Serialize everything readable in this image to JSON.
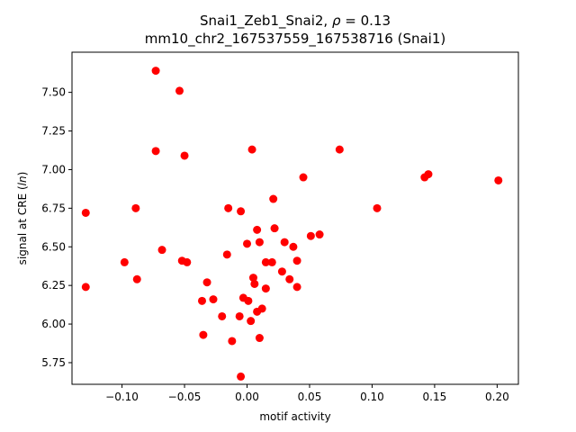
{
  "chart_data": {
    "type": "scatter",
    "title_line1_prefix": "Snai1_Zeb1_Snai2, ",
    "title_rho_symbol": "ρ",
    "title_rho_value": " = 0.13",
    "title_line2": "mm10_chr2_167537559_167538716 (Snai1)",
    "xlabel": "motif activity",
    "ylabel_prefix": "signal at CRE (",
    "ylabel_italic": "ln",
    "ylabel_suffix": ")",
    "xlim": [
      -0.14,
      0.217
    ],
    "ylim": [
      5.61,
      7.76
    ],
    "xticks": [
      -0.1,
      -0.05,
      0.0,
      0.05,
      0.1,
      0.15,
      0.2
    ],
    "xtick_labels": [
      "−0.10",
      "−0.05",
      "0.00",
      "0.05",
      "0.10",
      "0.15",
      "0.20"
    ],
    "yticks": [
      5.75,
      6.0,
      6.25,
      6.5,
      6.75,
      7.0,
      7.25,
      7.5
    ],
    "ytick_labels": [
      "5.75",
      "6.00",
      "6.25",
      "6.50",
      "6.75",
      "7.00",
      "7.25",
      "7.50"
    ],
    "marker_color": "#ff0000",
    "grid": false,
    "legend": "none",
    "points": [
      {
        "x": -0.073,
        "y": 7.64
      },
      {
        "x": -0.054,
        "y": 7.51
      },
      {
        "x": -0.073,
        "y": 7.12
      },
      {
        "x": -0.05,
        "y": 7.09
      },
      {
        "x": 0.004,
        "y": 7.13
      },
      {
        "x": 0.074,
        "y": 7.13
      },
      {
        "x": 0.045,
        "y": 6.95
      },
      {
        "x": 0.142,
        "y": 6.95
      },
      {
        "x": 0.145,
        "y": 6.97
      },
      {
        "x": 0.201,
        "y": 6.93
      },
      {
        "x": 0.104,
        "y": 6.75
      },
      {
        "x": -0.129,
        "y": 6.72
      },
      {
        "x": -0.089,
        "y": 6.75
      },
      {
        "x": -0.015,
        "y": 6.75
      },
      {
        "x": -0.005,
        "y": 6.73
      },
      {
        "x": 0.021,
        "y": 6.81
      },
      {
        "x": -0.129,
        "y": 6.24
      },
      {
        "x": -0.098,
        "y": 6.4
      },
      {
        "x": -0.088,
        "y": 6.29
      },
      {
        "x": -0.068,
        "y": 6.48
      },
      {
        "x": -0.052,
        "y": 6.41
      },
      {
        "x": -0.048,
        "y": 6.4
      },
      {
        "x": -0.032,
        "y": 6.27
      },
      {
        "x": -0.016,
        "y": 6.45
      },
      {
        "x": 0.008,
        "y": 6.61
      },
      {
        "x": 0.01,
        "y": 6.53
      },
      {
        "x": 0.022,
        "y": 6.62
      },
      {
        "x": 0.03,
        "y": 6.53
      },
      {
        "x": 0.037,
        "y": 6.5
      },
      {
        "x": 0.051,
        "y": 6.57
      },
      {
        "x": 0.058,
        "y": 6.58
      },
      {
        "x": 0.0,
        "y": 6.52
      },
      {
        "x": 0.015,
        "y": 6.4
      },
      {
        "x": 0.02,
        "y": 6.4
      },
      {
        "x": 0.04,
        "y": 6.41
      },
      {
        "x": 0.005,
        "y": 6.3
      },
      {
        "x": 0.006,
        "y": 6.26
      },
      {
        "x": 0.015,
        "y": 6.23
      },
      {
        "x": 0.028,
        "y": 6.34
      },
      {
        "x": 0.034,
        "y": 6.29
      },
      {
        "x": 0.04,
        "y": 6.24
      },
      {
        "x": -0.036,
        "y": 6.15
      },
      {
        "x": -0.027,
        "y": 6.16
      },
      {
        "x": -0.003,
        "y": 6.17
      },
      {
        "x": 0.001,
        "y": 6.15
      },
      {
        "x": -0.02,
        "y": 6.05
      },
      {
        "x": -0.006,
        "y": 6.05
      },
      {
        "x": 0.003,
        "y": 6.02
      },
      {
        "x": 0.008,
        "y": 6.08
      },
      {
        "x": 0.012,
        "y": 6.1
      },
      {
        "x": -0.035,
        "y": 5.93
      },
      {
        "x": -0.012,
        "y": 5.89
      },
      {
        "x": 0.01,
        "y": 5.91
      },
      {
        "x": -0.005,
        "y": 5.66
      }
    ]
  }
}
